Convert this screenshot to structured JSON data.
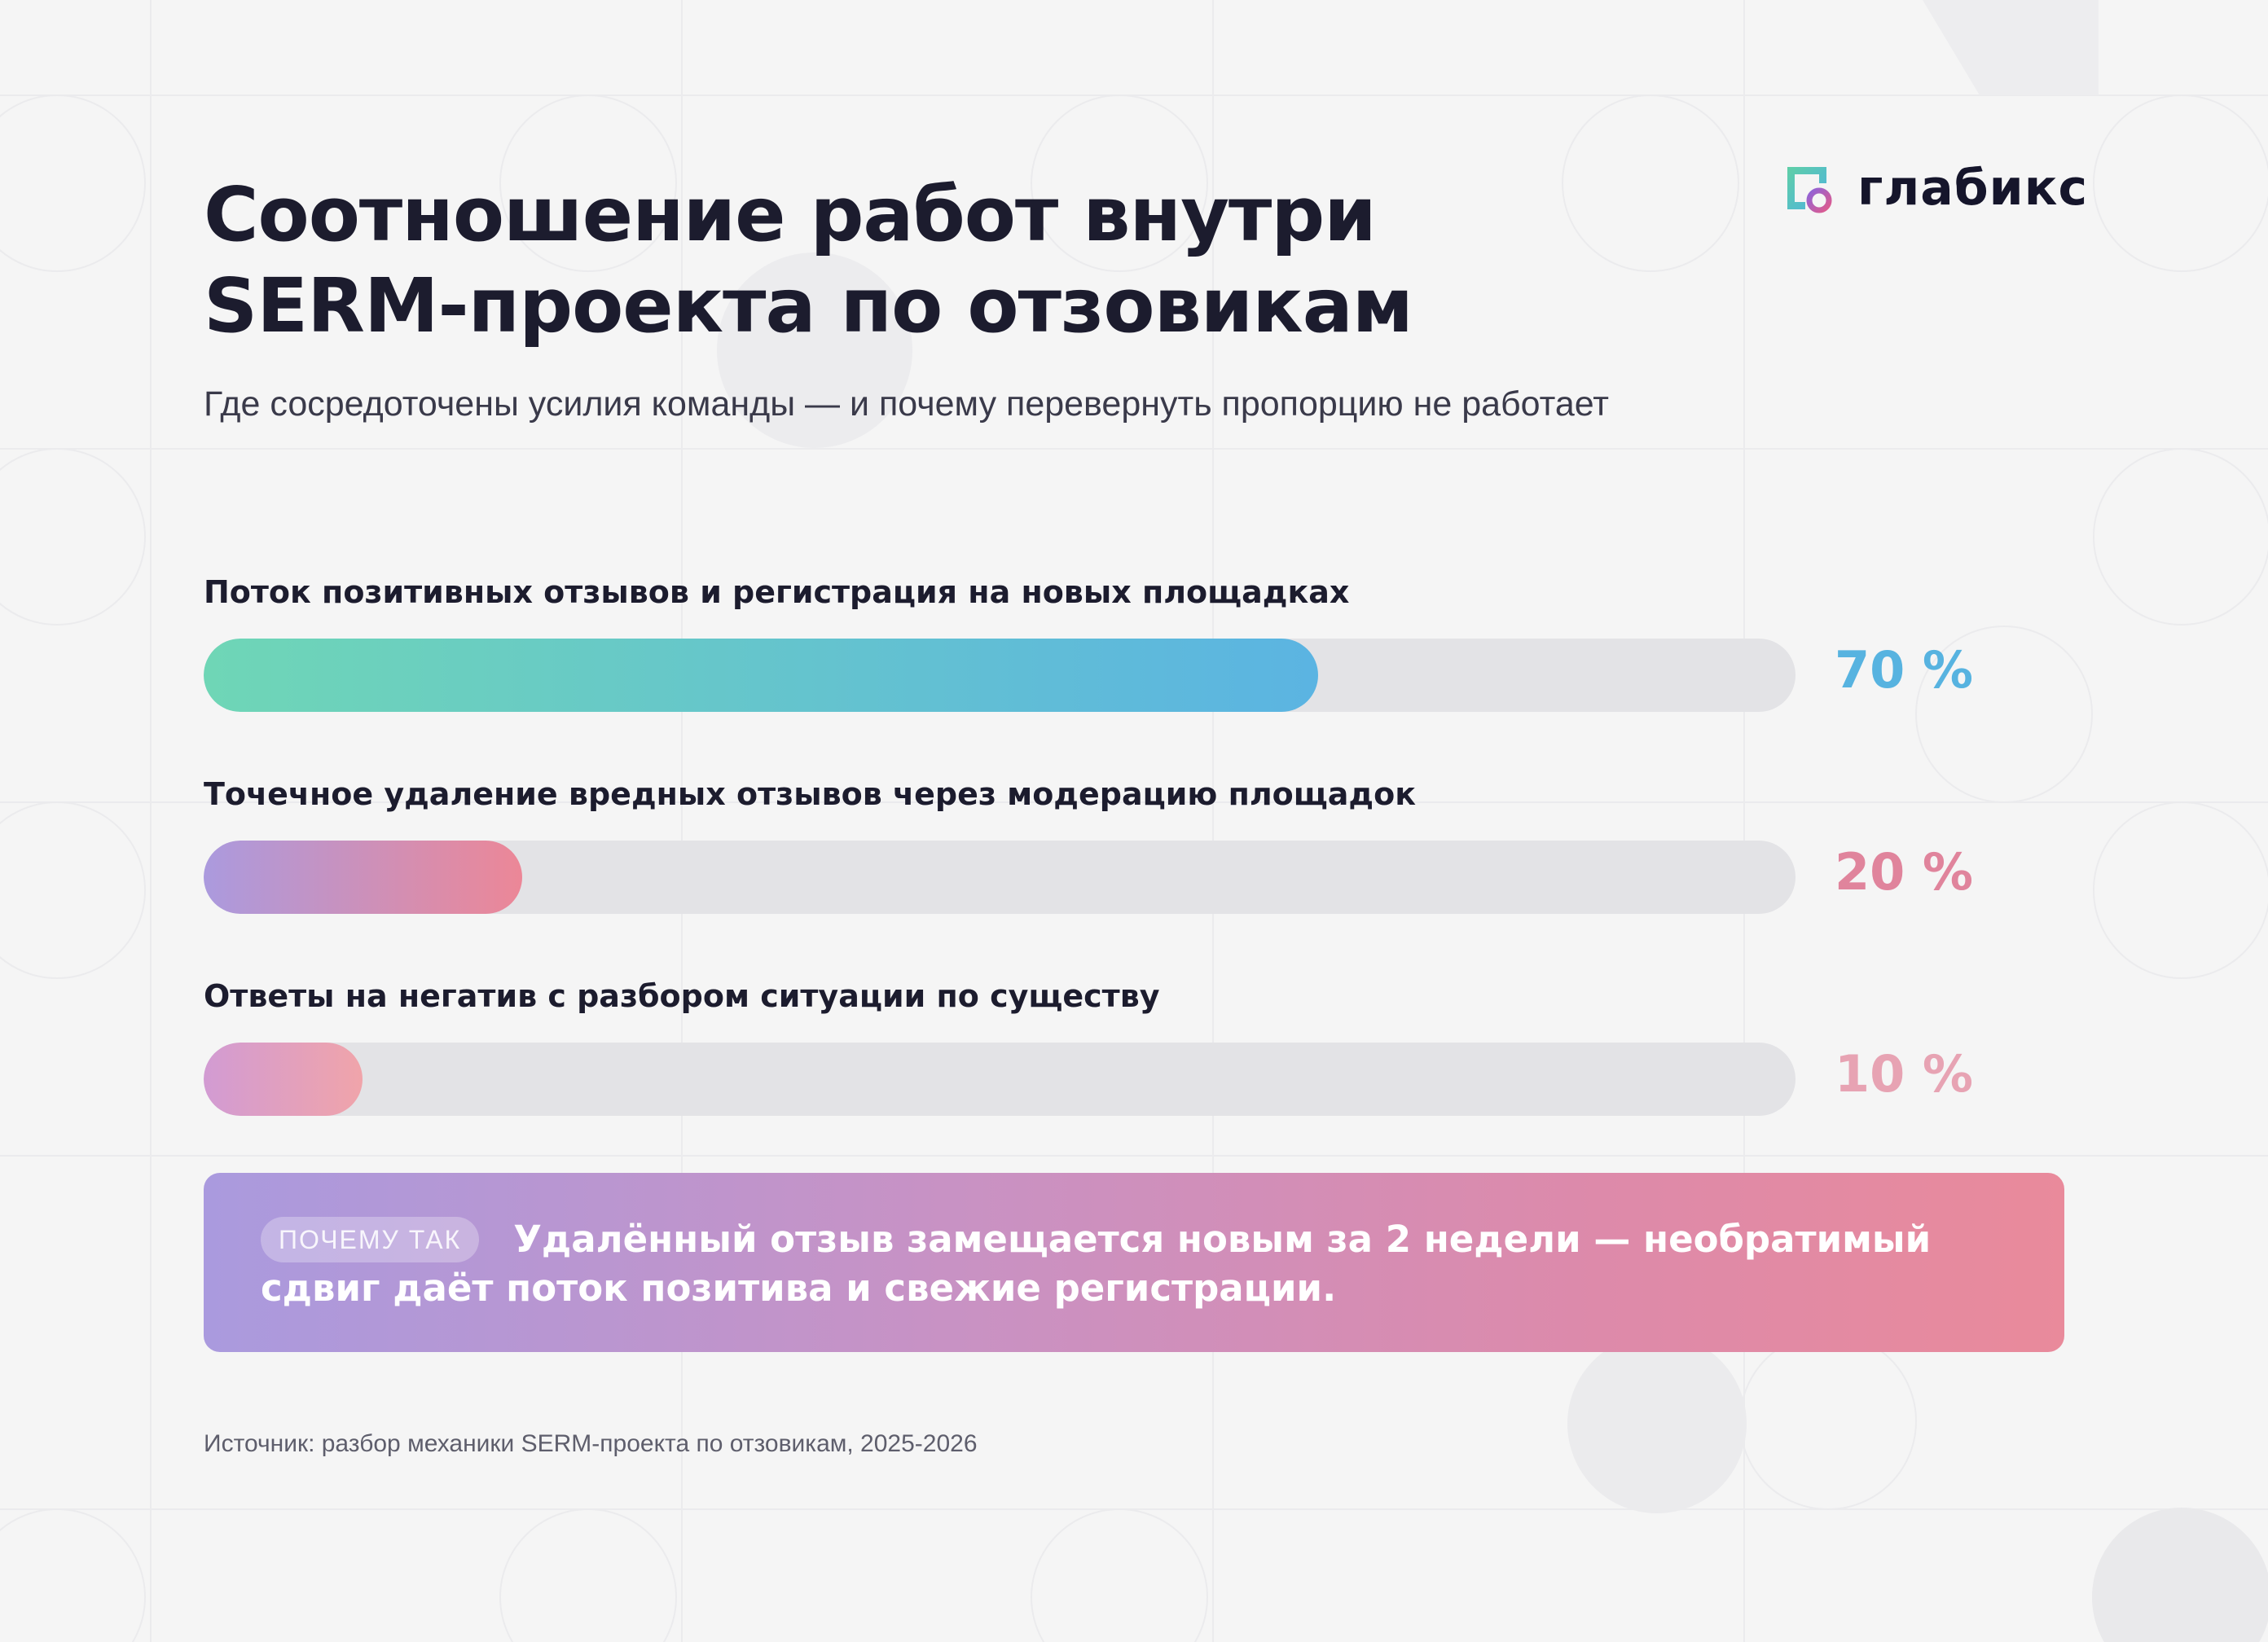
{
  "brand": {
    "name": "глабикс",
    "icon": "glabix-logo-icon",
    "colors": {
      "green": "#5fcfa6",
      "blue": "#4fb3e0",
      "purple": "#8e63d9",
      "pink": "#e05b8c"
    }
  },
  "header": {
    "title": "Соотношение работ внутри SERM-проекта по отзовикам",
    "subtitle": "Где сосредоточены усилия команды — и почему перевернуть пропорцию не работает"
  },
  "chart_data": {
    "type": "bar",
    "orientation": "horizontal",
    "categories": [
      "Поток позитивных отзывов и регистрация на новых площадках",
      "Точечное удаление вредных отзывов через модерацию площадок",
      "Ответы на негатив с разбором ситуации по существу"
    ],
    "values": [
      70,
      20,
      10
    ],
    "value_labels": [
      "70 %",
      "20 %",
      "10 %"
    ],
    "unit": "%",
    "xlim": [
      0,
      100
    ],
    "grid": false,
    "legend": "none",
    "bar_gradients": [
      [
        "#6fd6b6",
        "#5bb4e2"
      ],
      [
        "#ab9ade",
        "#ec8797"
      ],
      [
        "#d29bd3",
        "#f0a4aa"
      ]
    ],
    "value_colors": [
      "#57b3e0",
      "#e0849c",
      "#e7a3b3"
    ],
    "track_color": "#e3e3e6"
  },
  "callout": {
    "badge": "ПОЧЕМУ ТАК",
    "text": "Удалённый отзыв замещается новым за 2 недели — необратимый сдвиг даёт поток позитива и свежие регистрации."
  },
  "footer": {
    "source": "Источник: разбор механики SERM-проекта по отзовикам, 2025-2026"
  }
}
